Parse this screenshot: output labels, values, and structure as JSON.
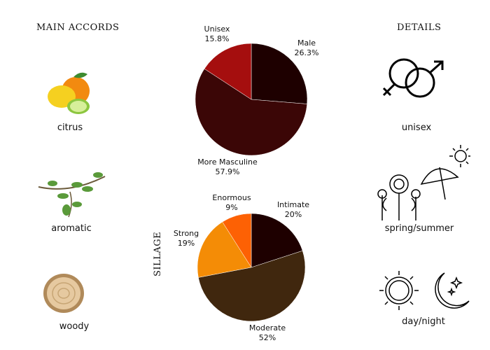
{
  "left": {
    "title": "MAIN ACCORDS",
    "accords": [
      {
        "label": "citrus",
        "icon": "citrus-fruit-icon"
      },
      {
        "label": "aromatic",
        "icon": "herb-sprig-icon"
      },
      {
        "label": "woody",
        "icon": "wood-slice-icon"
      }
    ]
  },
  "right": {
    "title": "DETAILS",
    "details": [
      {
        "label": "unisex",
        "icon": "gender-symbols-icon"
      },
      {
        "label": "spring/summer",
        "icon": "flowers-umbrella-sun-icon"
      },
      {
        "label": "day/night",
        "icon": "sun-moon-icon"
      }
    ]
  },
  "chart_data": [
    {
      "type": "pie",
      "title": "",
      "start": "top",
      "direction": "clockwise",
      "slices": [
        {
          "label": "Male",
          "value": 26.3,
          "display": "26.3%",
          "color": "#1e0000"
        },
        {
          "label": "More Masculine",
          "value": 57.9,
          "display": "57.9%",
          "color": "#3b0606"
        },
        {
          "label": "Unisex",
          "value": 15.8,
          "display": "15.8%",
          "color": "#a50e0e"
        }
      ]
    },
    {
      "type": "pie",
      "title": "SILLAGE",
      "start": "top",
      "direction": "clockwise",
      "slices": [
        {
          "label": "Intimate",
          "value": 20,
          "display": "20%",
          "color": "#1e0000"
        },
        {
          "label": "Moderate",
          "value": 52,
          "display": "52%",
          "color": "#40270e"
        },
        {
          "label": "Strong",
          "value": 19,
          "display": "19%",
          "color": "#f48c06"
        },
        {
          "label": "Enormous",
          "value": 9,
          "display": "9%",
          "color": "#fd6104"
        }
      ]
    }
  ]
}
